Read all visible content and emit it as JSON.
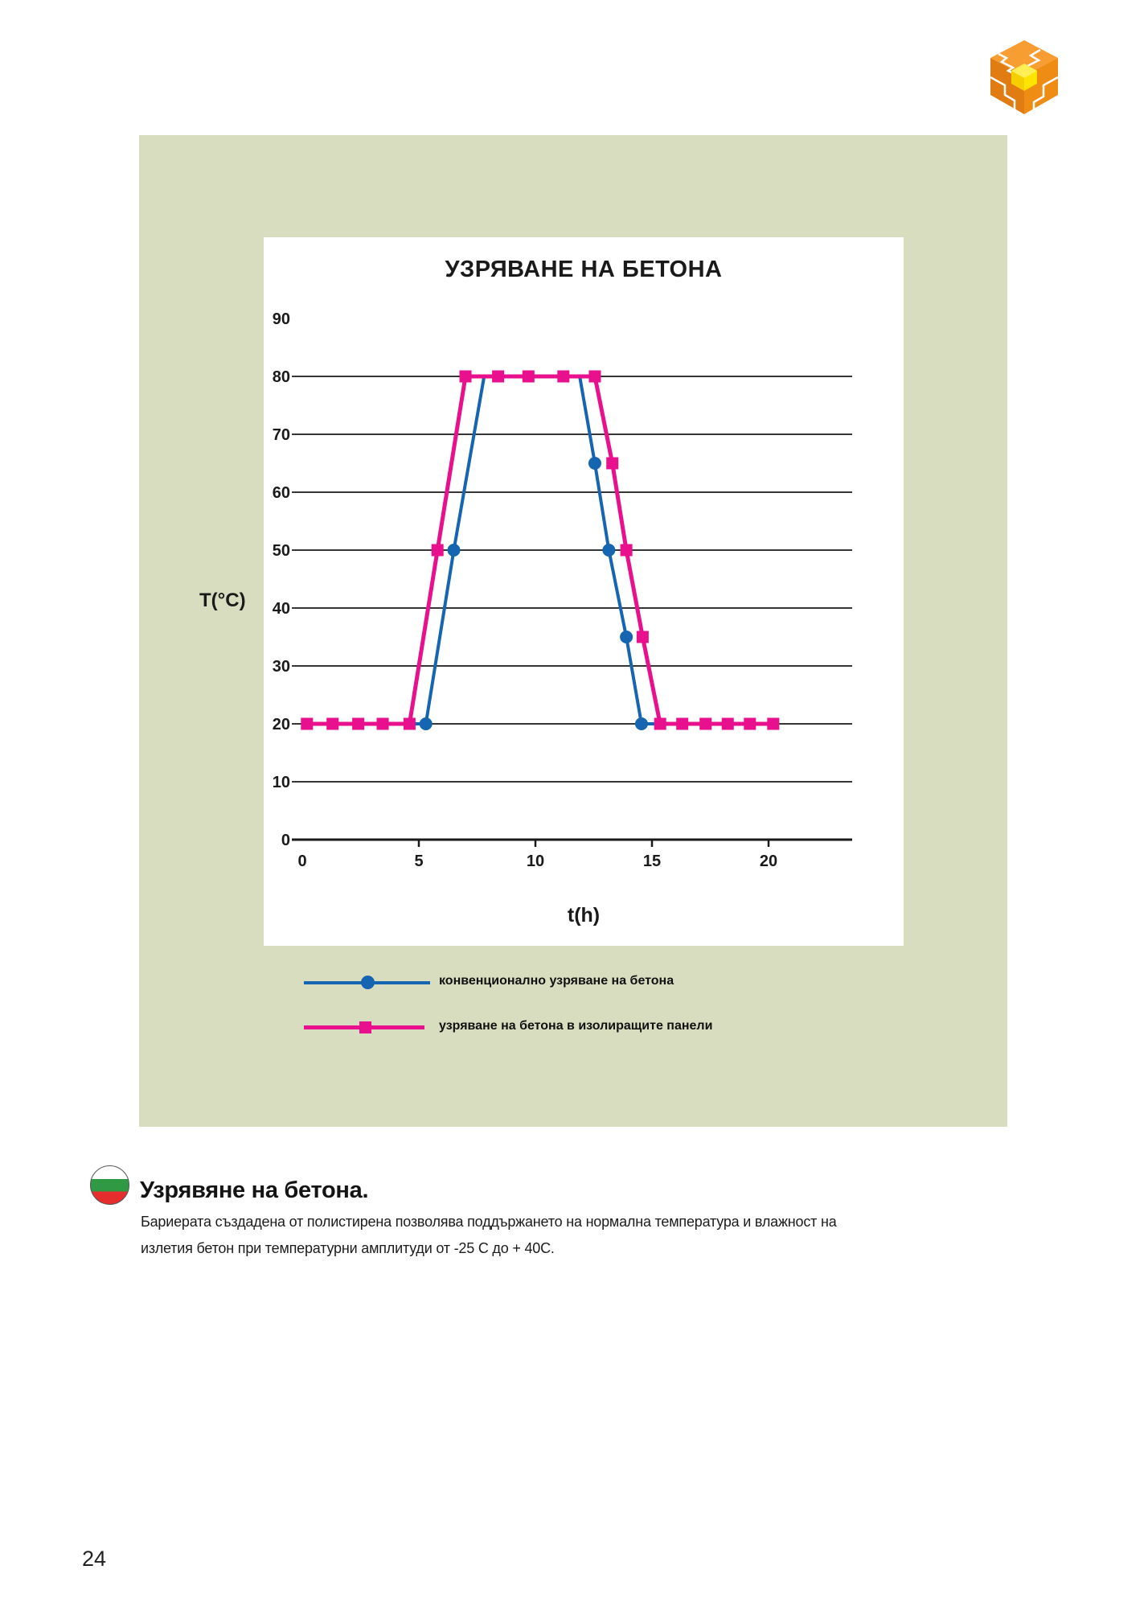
{
  "page": {
    "number": "24"
  },
  "colors": {
    "panel_background": "#d9ddc0",
    "conventional_blue": "#1565b0",
    "insulated_magenta": "#e8108c"
  },
  "chart_data": {
    "type": "line",
    "title": "УЗРЯВАНЕ НА БЕТОНА",
    "xlabel": "t(h)",
    "ylabel": "T(°C)",
    "xlim": [
      0,
      23.5
    ],
    "ylim": [
      0,
      95
    ],
    "x_ticks": [
      0,
      5,
      10,
      15,
      20
    ],
    "y_ticks": [
      0,
      10,
      20,
      30,
      40,
      50,
      60,
      70,
      80,
      90
    ],
    "gridlines_y": [
      10,
      20,
      30,
      40,
      50,
      60,
      70,
      80
    ],
    "legend_position": "below",
    "series": [
      {
        "name": "конвенционално узряване на бетона",
        "color": "#1565b0",
        "marker": "circle",
        "line": [
          [
            0.2,
            20
          ],
          [
            5.3,
            20
          ],
          [
            6.5,
            50
          ],
          [
            7.8,
            80
          ],
          [
            11.9,
            80
          ],
          [
            12.55,
            65
          ],
          [
            13.15,
            50
          ],
          [
            13.9,
            35
          ],
          [
            14.55,
            20
          ],
          [
            20.3,
            20
          ]
        ],
        "markers": [
          [
            5.3,
            20
          ],
          [
            6.5,
            50
          ],
          [
            12.55,
            65
          ],
          [
            13.15,
            50
          ],
          [
            13.9,
            35
          ],
          [
            14.55,
            20
          ]
        ]
      },
      {
        "name": "узряване на бетона в изолиращите панели",
        "color": "#e8108c",
        "marker": "square",
        "line": [
          [
            0.2,
            20
          ],
          [
            4.6,
            20
          ],
          [
            5.8,
            50
          ],
          [
            7.0,
            80
          ],
          [
            12.55,
            80
          ],
          [
            13.3,
            65
          ],
          [
            13.9,
            50
          ],
          [
            14.6,
            35
          ],
          [
            15.35,
            20
          ],
          [
            20.2,
            20
          ]
        ],
        "markers": [
          [
            0.2,
            20
          ],
          [
            1.3,
            20
          ],
          [
            2.4,
            20
          ],
          [
            3.45,
            20
          ],
          [
            4.6,
            20
          ],
          [
            5.8,
            50
          ],
          [
            7.0,
            80
          ],
          [
            8.4,
            80
          ],
          [
            9.7,
            80
          ],
          [
            11.2,
            80
          ],
          [
            12.55,
            80
          ],
          [
            13.3,
            65
          ],
          [
            13.9,
            50
          ],
          [
            14.6,
            35
          ],
          [
            15.35,
            20
          ],
          [
            16.3,
            20
          ],
          [
            17.3,
            20
          ],
          [
            18.25,
            20
          ],
          [
            19.2,
            20
          ],
          [
            20.2,
            20
          ]
        ]
      }
    ]
  },
  "footer": {
    "heading": "Узрявяне на бетона.",
    "body_lines": [
      "Бариерата създадена от полистирена позволява поддържането на нормална температура и влажност на",
      "излетия бетон при температурни амплитуди от -25 С до + 40С."
    ],
    "flag_colors": [
      "#ffffff",
      "#2f9a43",
      "#e52d2d"
    ]
  }
}
